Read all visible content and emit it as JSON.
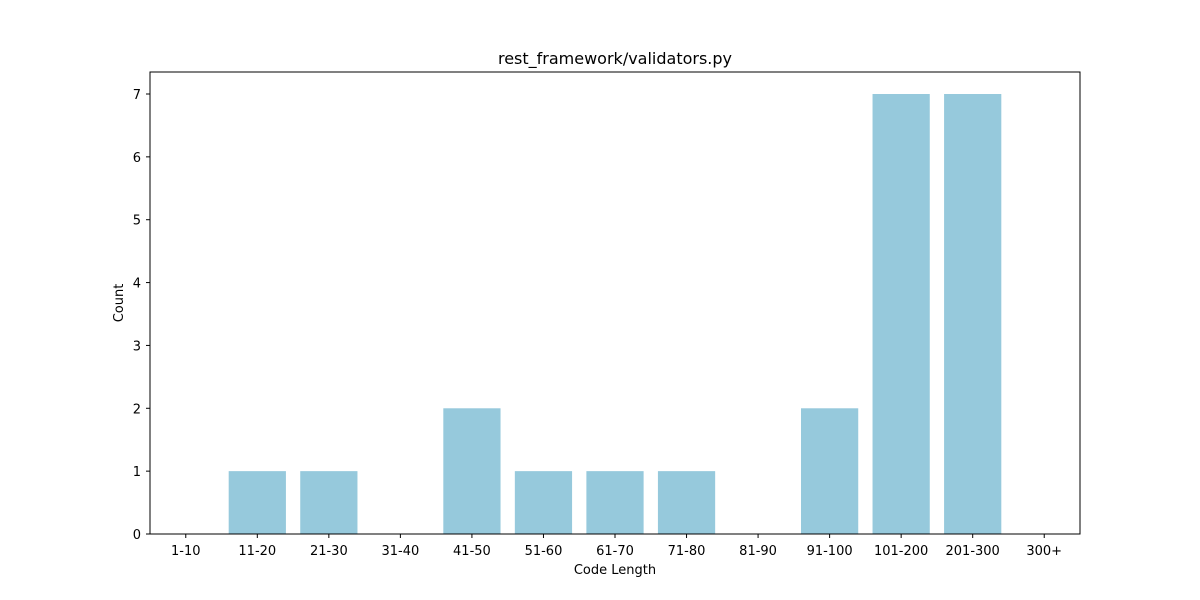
{
  "chart_data": {
    "type": "bar",
    "title": "rest_framework/validators.py",
    "xlabel": "Code Length",
    "ylabel": "Count",
    "categories": [
      "1-10",
      "11-20",
      "21-30",
      "31-40",
      "41-50",
      "51-60",
      "61-70",
      "71-80",
      "81-90",
      "91-100",
      "101-200",
      "201-300",
      "300+"
    ],
    "values": [
      0,
      1,
      1,
      0,
      2,
      1,
      1,
      1,
      0,
      2,
      7,
      7,
      0
    ],
    "yticks": [
      0,
      1,
      2,
      3,
      4,
      5,
      6,
      7
    ],
    "ylim": [
      0,
      7.35
    ],
    "bar_color": "#96c9dc",
    "grid": false,
    "legend": "none"
  }
}
